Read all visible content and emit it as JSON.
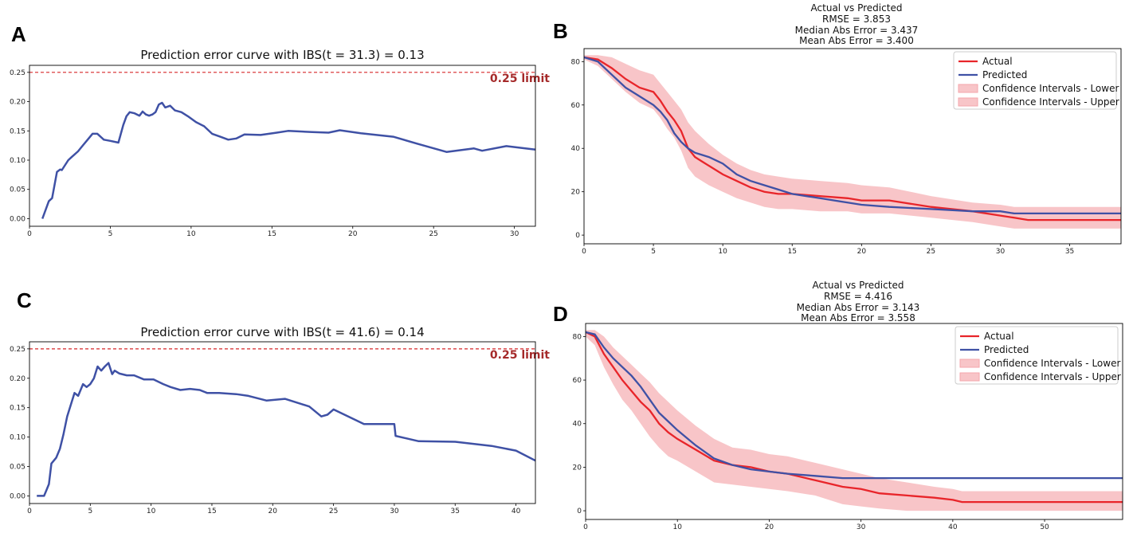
{
  "chart_data": [
    {
      "panel_label": "A",
      "type": "line",
      "title": "Prediction error curve with IBS(t = 31.3) = 0.13",
      "xlim": [
        0,
        31.3
      ],
      "ylim": [
        -0.013,
        0.262
      ],
      "xticks": [
        0,
        5,
        10,
        15,
        20,
        25,
        30
      ],
      "yticks": [
        0.0,
        0.05,
        0.1,
        0.15,
        0.2,
        0.25
      ],
      "ytick_labels": [
        "0.00",
        "0.05",
        "0.10",
        "0.15",
        "0.20",
        "0.25"
      ],
      "limit_value": 0.25,
      "limit_label": "0.25 limit",
      "colors": {
        "curve": "#3f51a5",
        "limit": "#d62728",
        "limit_text": "#a52a2a"
      },
      "series": [
        {
          "name": "Prediction error",
          "x": [
            0.8,
            1.2,
            1.4,
            1.7,
            1.9,
            2.0,
            2.4,
            2.6,
            3.0,
            3.3,
            3.6,
            3.9,
            4.2,
            4.6,
            5.0,
            5.5,
            5.8,
            6.0,
            6.2,
            6.5,
            6.8,
            7.0,
            7.2,
            7.4,
            7.6,
            7.8,
            8.0,
            8.2,
            8.4,
            8.7,
            9.0,
            9.4,
            9.8,
            10.3,
            10.8,
            11.3,
            11.8,
            12.3,
            12.8,
            13.3,
            14.3,
            15.3,
            16.0,
            17.5,
            18.5,
            19.2,
            20.5,
            22.5,
            24.0,
            25.8,
            27.5,
            28.0,
            29.5,
            31.3
          ],
          "values": [
            0.0,
            0.03,
            0.035,
            0.08,
            0.084,
            0.083,
            0.1,
            0.105,
            0.115,
            0.125,
            0.135,
            0.145,
            0.145,
            0.135,
            0.133,
            0.13,
            0.16,
            0.175,
            0.182,
            0.18,
            0.176,
            0.183,
            0.178,
            0.176,
            0.178,
            0.182,
            0.195,
            0.198,
            0.19,
            0.193,
            0.185,
            0.182,
            0.175,
            0.165,
            0.158,
            0.145,
            0.14,
            0.135,
            0.137,
            0.144,
            0.143,
            0.147,
            0.15,
            0.148,
            0.147,
            0.151,
            0.146,
            0.14,
            0.128,
            0.114,
            0.12,
            0.116,
            0.124,
            0.118
          ]
        }
      ]
    },
    {
      "panel_label": "B",
      "type": "line",
      "title_lines": [
        "Actual vs Predicted",
        "RMSE = 3.853",
        "Median Abs Error = 3.437",
        "Mean Abs Error = 3.400"
      ],
      "xlim": [
        0,
        38.7
      ],
      "ylim": [
        -4,
        86
      ],
      "xticks": [
        0,
        5,
        10,
        15,
        20,
        25,
        30,
        35
      ],
      "yticks": [
        0,
        20,
        40,
        60,
        80
      ],
      "legend": [
        "Actual",
        "Predicted",
        "Confidence Intervals - Lower",
        "Confidence Intervals - Upper"
      ],
      "legend_position": "upper right",
      "colors": {
        "actual": "#e8252a",
        "predicted": "#3f51a5",
        "band": "#f4a6ab"
      },
      "x": [
        0,
        1,
        2,
        3,
        4,
        5,
        5.5,
        6,
        6.5,
        7,
        7.5,
        8,
        8.5,
        9,
        10,
        11,
        12,
        13,
        14,
        15,
        17,
        19,
        20,
        22,
        25,
        28,
        30,
        31,
        32,
        35,
        38.7
      ],
      "series": [
        {
          "name": "Actual",
          "values": [
            82,
            81,
            77,
            72,
            68,
            66,
            62,
            57,
            53,
            48,
            40,
            36,
            34,
            32,
            28,
            25,
            22,
            20,
            19,
            19,
            18,
            17,
            16,
            16,
            13,
            11,
            9,
            8,
            7,
            7,
            7
          ]
        },
        {
          "name": "Predicted",
          "values": [
            82,
            80,
            74,
            68,
            64,
            60,
            57,
            53,
            47,
            43,
            40,
            38,
            37,
            36,
            33,
            28,
            25,
            23,
            21,
            19,
            17,
            15,
            14,
            13,
            12,
            11,
            11,
            10,
            10,
            10,
            10
          ]
        },
        {
          "name": "Confidence Intervals - Lower",
          "values": [
            81,
            78,
            72,
            66,
            61,
            58,
            54,
            49,
            45,
            39,
            31,
            27,
            25,
            23,
            20,
            17,
            15,
            13,
            12,
            12,
            11,
            11,
            10,
            10,
            8,
            6,
            4,
            3,
            3,
            3,
            3
          ]
        },
        {
          "name": "Confidence Intervals - Upper",
          "values": [
            83,
            83,
            82,
            79,
            76,
            74,
            70,
            66,
            62,
            58,
            52,
            48,
            45,
            42,
            37,
            33,
            30,
            28,
            27,
            26,
            25,
            24,
            23,
            22,
            18,
            15,
            14,
            13,
            13,
            13,
            13
          ]
        }
      ]
    },
    {
      "panel_label": "C",
      "type": "line",
      "title": "Prediction error curve with IBS(t = 41.6) = 0.14",
      "xlim": [
        0,
        41.6
      ],
      "ylim": [
        -0.013,
        0.262
      ],
      "xticks": [
        0,
        5,
        10,
        15,
        20,
        25,
        30,
        35,
        40
      ],
      "yticks": [
        0.0,
        0.05,
        0.1,
        0.15,
        0.2,
        0.25
      ],
      "ytick_labels": [
        "0.00",
        "0.05",
        "0.10",
        "0.15",
        "0.20",
        "0.25"
      ],
      "limit_value": 0.25,
      "limit_label": "0.25 limit",
      "colors": {
        "curve": "#3f51a5",
        "limit": "#d62728",
        "limit_text": "#a52a2a"
      },
      "series": [
        {
          "name": "Prediction error",
          "x": [
            0.6,
            1.2,
            1.4,
            1.6,
            1.8,
            2.2,
            2.5,
            2.8,
            3.1,
            3.4,
            3.7,
            4.0,
            4.4,
            4.7,
            5.0,
            5.3,
            5.6,
            5.9,
            6.2,
            6.5,
            6.8,
            7.0,
            7.4,
            8.0,
            8.6,
            9.4,
            10.2,
            11.0,
            11.6,
            12.4,
            13.2,
            14.0,
            14.6,
            15.6,
            17.0,
            18.0,
            19.5,
            21.0,
            23.0,
            24.0,
            24.5,
            25.0,
            27.5,
            30.0,
            30.1,
            32.0,
            35.0,
            38.0,
            40.0,
            41.6
          ],
          "values": [
            0.0,
            0.0,
            0.01,
            0.02,
            0.055,
            0.065,
            0.08,
            0.105,
            0.135,
            0.155,
            0.175,
            0.17,
            0.19,
            0.185,
            0.19,
            0.2,
            0.22,
            0.213,
            0.22,
            0.226,
            0.207,
            0.213,
            0.208,
            0.205,
            0.205,
            0.198,
            0.198,
            0.19,
            0.185,
            0.18,
            0.182,
            0.18,
            0.175,
            0.175,
            0.173,
            0.17,
            0.162,
            0.165,
            0.152,
            0.135,
            0.138,
            0.147,
            0.122,
            0.122,
            0.102,
            0.093,
            0.092,
            0.085,
            0.077,
            0.06
          ]
        }
      ]
    },
    {
      "panel_label": "D",
      "type": "line",
      "title_lines": [
        "Actual vs Predicted",
        "RMSE = 4.416",
        "Median Abs Error = 3.143",
        "Mean Abs Error = 3.558"
      ],
      "xlim": [
        0,
        58.5
      ],
      "ylim": [
        -4,
        86
      ],
      "xticks": [
        0,
        10,
        20,
        30,
        40,
        50
      ],
      "yticks": [
        0,
        20,
        40,
        60,
        80
      ],
      "legend": [
        "Actual",
        "Predicted",
        "Confidence Intervals - Lower",
        "Confidence Intervals - Upper"
      ],
      "legend_position": "upper right",
      "colors": {
        "actual": "#e8252a",
        "predicted": "#3f51a5",
        "band": "#f4a6ab"
      },
      "x": [
        0,
        1,
        2,
        3,
        4,
        5,
        6,
        7,
        8,
        9,
        10,
        12,
        14,
        16,
        18,
        20,
        22,
        25,
        28,
        30,
        32,
        35,
        38,
        40,
        41,
        45,
        50,
        58.5
      ],
      "series": [
        {
          "name": "Actual",
          "values": [
            82,
            80,
            72,
            66,
            60,
            55,
            50,
            46,
            40,
            36,
            33,
            28,
            23,
            21,
            20,
            18,
            17,
            14,
            11,
            10,
            8,
            7,
            6,
            5,
            4,
            4,
            4,
            4
          ]
        },
        {
          "name": "Predicted",
          "values": [
            82,
            81,
            75,
            70,
            66,
            62,
            57,
            51,
            45,
            41,
            37,
            30,
            24,
            21,
            19,
            18,
            17,
            16,
            15,
            15,
            15,
            15,
            15,
            15,
            15,
            15,
            15,
            15
          ]
        },
        {
          "name": "Confidence Intervals - Lower",
          "values": [
            80,
            76,
            66,
            58,
            51,
            46,
            40,
            34,
            29,
            25,
            23,
            18,
            13,
            12,
            11,
            10,
            9,
            7,
            3,
            2,
            1,
            0,
            0,
            0,
            0,
            0,
            0,
            0
          ]
        },
        {
          "name": "Confidence Intervals - Upper",
          "values": [
            83,
            83,
            80,
            75,
            71,
            67,
            63,
            59,
            54,
            50,
            46,
            39,
            33,
            29,
            28,
            26,
            25,
            22,
            19,
            17,
            15,
            13,
            11,
            10,
            9,
            9,
            9,
            9
          ]
        }
      ]
    }
  ]
}
